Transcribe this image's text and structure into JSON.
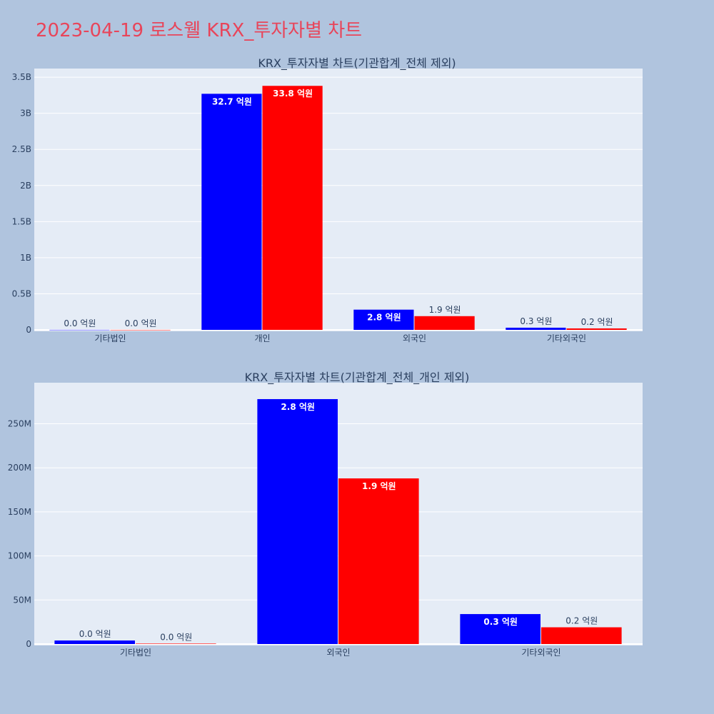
{
  "page": {
    "title": "2023-04-19 로스웰 KRX_투자자별 차트"
  },
  "colors": {
    "background": "#b0c4de",
    "plot_bg": "#e5ecf6",
    "title": "#e8455a",
    "series_a": "#0000ff",
    "series_b": "#ff0000"
  },
  "chart_data": [
    {
      "type": "bar",
      "title": "KRX_투자자별 차트(기관합계_전체 제외)",
      "categories": [
        "기타법인",
        "개인",
        "외국인",
        "기타외국인"
      ],
      "series": [
        {
          "color": "#0000ff",
          "values": [
            1000000,
            3270000000,
            280000000,
            30000000
          ],
          "labels": [
            "0.0 억원",
            "32.7 억원",
            "2.8 억원",
            "0.3 억원"
          ]
        },
        {
          "color": "#ff0000",
          "values": [
            500000,
            3380000000,
            190000000,
            20000000
          ],
          "labels": [
            "0.0 억원",
            "33.8 억원",
            "1.9 억원",
            "0.2 억원"
          ]
        }
      ],
      "ylim": [
        0,
        3600000000
      ],
      "yticks": [
        0,
        500000000,
        1000000000,
        1500000000,
        2000000000,
        2500000000,
        3000000000,
        3500000000
      ],
      "yticklabels": [
        "0",
        "0.5B",
        "1B",
        "1.5B",
        "2B",
        "2.5B",
        "3B",
        "3.5B"
      ],
      "grid": true
    },
    {
      "type": "bar",
      "title": "KRX_투자자별 차트(기관합계_전체_개인 제외)",
      "categories": [
        "기타법인",
        "외국인",
        "기타외국인"
      ],
      "series": [
        {
          "color": "#0000ff",
          "values": [
            4000000,
            278000000,
            34000000
          ],
          "labels": [
            "0.0 억원",
            "2.8 억원",
            "0.3 억원"
          ]
        },
        {
          "color": "#ff0000",
          "values": [
            500000,
            188000000,
            19000000
          ],
          "labels": [
            "0.0 억원",
            "1.9 억원",
            "0.2 억원"
          ]
        }
      ],
      "ylim": [
        0,
        295000000
      ],
      "yticks": [
        0,
        50000000,
        100000000,
        150000000,
        200000000,
        250000000
      ],
      "yticklabels": [
        "0",
        "50M",
        "100M",
        "150M",
        "200M",
        "250M"
      ],
      "grid": true
    }
  ]
}
